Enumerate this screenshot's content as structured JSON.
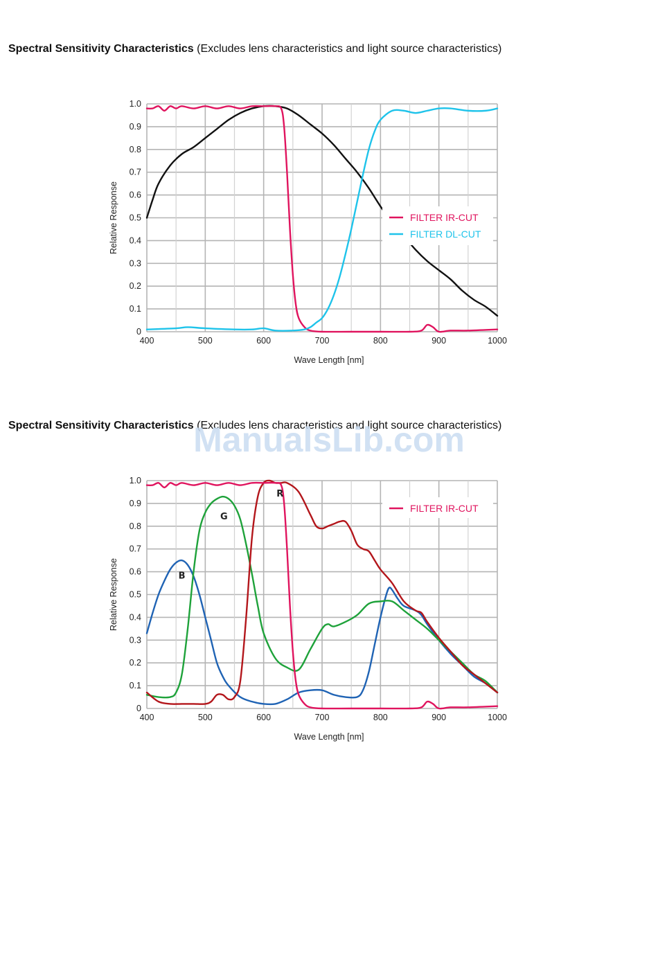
{
  "sections": [
    {
      "title_bold": "Spectral Sensitivity Characteristics",
      "title_rest": " (Excludes lens characteristics and light source characteristics)"
    },
    {
      "title_bold": "Spectral Sensitivity Characteristics",
      "title_rest": " (Excludes lens characteristics and light source characteristics)"
    }
  ],
  "watermark": "ManualsLib.com",
  "colors": {
    "black": "#111111",
    "ir_cut": "#e0145e",
    "dl_cut": "#1ec3ea",
    "red": "#b3161b",
    "green": "#1ea23a",
    "blue": "#1f63b4",
    "grid": "#b4b4b4",
    "plot_bg": "#ffffff"
  },
  "chart_data": [
    {
      "type": "line",
      "xlabel": "Wave Length [nm]",
      "ylabel": "Relative Response",
      "xlim": [
        400,
        1000
      ],
      "ylim": [
        0,
        1.0
      ],
      "xticks": [
        400,
        500,
        600,
        700,
        800,
        900,
        1000
      ],
      "yticks": [
        0,
        0.1,
        0.2,
        0.3,
        0.4,
        0.5,
        0.6,
        0.7,
        0.8,
        0.9,
        1.0
      ],
      "yticklabels": [
        "0",
        "0.1",
        "0.2",
        "0.3",
        "0.4",
        "0.5",
        "0.6",
        "0.7",
        "0.8",
        "0.9",
        "1.0"
      ],
      "grid": true,
      "legend": {
        "position": "right",
        "entries": [
          {
            "label": "FILTER IR-CUT",
            "color": "#e0145e"
          },
          {
            "label": "FILTER DL-CUT",
            "color": "#1ec3ea"
          }
        ]
      },
      "series": [
        {
          "color": "#111111",
          "x": [
            400,
            410,
            420,
            440,
            460,
            480,
            500,
            520,
            540,
            560,
            580,
            600,
            620,
            640,
            660,
            680,
            700,
            720,
            740,
            760,
            780,
            800,
            820,
            840,
            860,
            880,
            900,
            920,
            940,
            960,
            980,
            1000
          ],
          "y": [
            0.5,
            0.58,
            0.65,
            0.73,
            0.78,
            0.81,
            0.85,
            0.89,
            0.93,
            0.96,
            0.98,
            0.99,
            0.99,
            0.98,
            0.95,
            0.91,
            0.87,
            0.82,
            0.76,
            0.7,
            0.63,
            0.55,
            0.48,
            0.42,
            0.36,
            0.31,
            0.27,
            0.23,
            0.18,
            0.14,
            0.11,
            0.07
          ]
        },
        {
          "name": "FILTER IR-CUT",
          "color": "#e0145e",
          "x": [
            400,
            410,
            420,
            430,
            440,
            450,
            460,
            480,
            500,
            520,
            540,
            560,
            580,
            600,
            620,
            630,
            635,
            640,
            645,
            650,
            655,
            660,
            670,
            680,
            700,
            750,
            800,
            850,
            870,
            880,
            890,
            900,
            920,
            950,
            1000
          ],
          "y": [
            0.98,
            0.98,
            0.99,
            0.97,
            0.99,
            0.98,
            0.99,
            0.98,
            0.99,
            0.98,
            0.99,
            0.98,
            0.99,
            0.99,
            0.99,
            0.98,
            0.9,
            0.7,
            0.45,
            0.25,
            0.12,
            0.06,
            0.02,
            0.005,
            0.0,
            0.0,
            0.0,
            0.0,
            0.005,
            0.03,
            0.02,
            0.0,
            0.005,
            0.005,
            0.01
          ]
        },
        {
          "name": "FILTER DL-CUT",
          "color": "#1ec3ea",
          "x": [
            400,
            450,
            470,
            500,
            550,
            580,
            600,
            620,
            650,
            670,
            680,
            690,
            700,
            710,
            720,
            730,
            740,
            750,
            760,
            770,
            780,
            790,
            800,
            820,
            840,
            860,
            880,
            900,
            920,
            950,
            980,
            1000
          ],
          "y": [
            0.01,
            0.015,
            0.02,
            0.015,
            0.01,
            0.01,
            0.015,
            0.005,
            0.005,
            0.01,
            0.02,
            0.04,
            0.06,
            0.1,
            0.16,
            0.24,
            0.34,
            0.45,
            0.57,
            0.69,
            0.8,
            0.88,
            0.93,
            0.97,
            0.97,
            0.96,
            0.97,
            0.98,
            0.98,
            0.97,
            0.97,
            0.98
          ]
        }
      ]
    },
    {
      "type": "line",
      "xlabel": "Wave Length [nm]",
      "ylabel": "Relative Response",
      "xlim": [
        400,
        1000
      ],
      "ylim": [
        0,
        1.0
      ],
      "xticks": [
        400,
        500,
        600,
        700,
        800,
        900,
        1000
      ],
      "yticks": [
        0,
        0.1,
        0.2,
        0.3,
        0.4,
        0.5,
        0.6,
        0.7,
        0.8,
        0.9,
        1.0
      ],
      "yticklabels": [
        "0",
        "0.1",
        "0.2",
        "0.3",
        "0.4",
        "0.5",
        "0.6",
        "0.7",
        "0.8",
        "0.9",
        "1.0"
      ],
      "grid": true,
      "legend": {
        "position": "top-right",
        "entries": [
          {
            "label": "FILTER IR-CUT",
            "color": "#e0145e"
          }
        ]
      },
      "curve_labels": [
        {
          "text": "B",
          "x": 460,
          "y": 0.57
        },
        {
          "text": "G",
          "x": 532,
          "y": 0.83
        },
        {
          "text": "R",
          "x": 628,
          "y": 0.93
        }
      ],
      "series": [
        {
          "name": "B",
          "color": "#1f63b4",
          "x": [
            400,
            410,
            420,
            430,
            440,
            450,
            460,
            470,
            480,
            490,
            500,
            510,
            520,
            530,
            540,
            560,
            580,
            600,
            620,
            640,
            660,
            680,
            700,
            720,
            740,
            760,
            770,
            780,
            790,
            800,
            810,
            815,
            820,
            830,
            840,
            860,
            870,
            880,
            900,
            920,
            940,
            960,
            980,
            1000
          ],
          "y": [
            0.33,
            0.42,
            0.5,
            0.56,
            0.61,
            0.64,
            0.65,
            0.63,
            0.58,
            0.5,
            0.4,
            0.3,
            0.2,
            0.14,
            0.1,
            0.05,
            0.03,
            0.02,
            0.02,
            0.04,
            0.07,
            0.08,
            0.08,
            0.06,
            0.05,
            0.05,
            0.08,
            0.16,
            0.28,
            0.4,
            0.5,
            0.53,
            0.52,
            0.48,
            0.45,
            0.43,
            0.41,
            0.37,
            0.3,
            0.24,
            0.19,
            0.14,
            0.11,
            0.07
          ]
        },
        {
          "name": "G",
          "color": "#1ea23a",
          "x": [
            400,
            420,
            440,
            450,
            460,
            470,
            480,
            490,
            500,
            510,
            520,
            530,
            540,
            550,
            560,
            570,
            580,
            590,
            600,
            620,
            640,
            660,
            680,
            700,
            710,
            720,
            740,
            760,
            780,
            800,
            820,
            840,
            860,
            880,
            900,
            920,
            940,
            960,
            980,
            1000
          ],
          "y": [
            0.06,
            0.05,
            0.05,
            0.07,
            0.15,
            0.35,
            0.6,
            0.78,
            0.86,
            0.9,
            0.92,
            0.93,
            0.92,
            0.89,
            0.83,
            0.72,
            0.59,
            0.45,
            0.33,
            0.22,
            0.18,
            0.17,
            0.26,
            0.35,
            0.37,
            0.36,
            0.38,
            0.41,
            0.46,
            0.47,
            0.47,
            0.43,
            0.39,
            0.35,
            0.3,
            0.25,
            0.2,
            0.15,
            0.12,
            0.07
          ]
        },
        {
          "name": "R",
          "color": "#b3161b",
          "x": [
            400,
            420,
            440,
            460,
            480,
            500,
            510,
            520,
            530,
            540,
            550,
            560,
            570,
            580,
            590,
            600,
            610,
            620,
            630,
            640,
            660,
            680,
            690,
            700,
            710,
            720,
            730,
            740,
            750,
            760,
            770,
            780,
            790,
            800,
            820,
            840,
            860,
            870,
            880,
            900,
            920,
            940,
            960,
            980,
            1000
          ],
          "y": [
            0.07,
            0.03,
            0.02,
            0.02,
            0.02,
            0.02,
            0.03,
            0.06,
            0.06,
            0.04,
            0.05,
            0.12,
            0.4,
            0.75,
            0.93,
            0.99,
            1.0,
            0.99,
            0.99,
            0.99,
            0.95,
            0.85,
            0.8,
            0.79,
            0.8,
            0.81,
            0.82,
            0.82,
            0.78,
            0.72,
            0.7,
            0.69,
            0.65,
            0.61,
            0.55,
            0.47,
            0.43,
            0.42,
            0.38,
            0.31,
            0.25,
            0.19,
            0.15,
            0.11,
            0.07
          ]
        },
        {
          "name": "FILTER IR-CUT",
          "color": "#e0145e",
          "x": [
            400,
            410,
            420,
            430,
            440,
            450,
            460,
            480,
            500,
            520,
            540,
            560,
            580,
            600,
            620,
            630,
            635,
            640,
            645,
            650,
            655,
            660,
            670,
            680,
            700,
            750,
            800,
            850,
            870,
            880,
            890,
            900,
            920,
            950,
            1000
          ],
          "y": [
            0.98,
            0.98,
            0.99,
            0.97,
            0.99,
            0.98,
            0.99,
            0.98,
            0.99,
            0.98,
            0.99,
            0.98,
            0.99,
            0.99,
            0.99,
            0.98,
            0.9,
            0.7,
            0.45,
            0.25,
            0.12,
            0.06,
            0.02,
            0.005,
            0.0,
            0.0,
            0.0,
            0.0,
            0.005,
            0.03,
            0.02,
            0.0,
            0.005,
            0.005,
            0.01
          ]
        }
      ]
    }
  ]
}
